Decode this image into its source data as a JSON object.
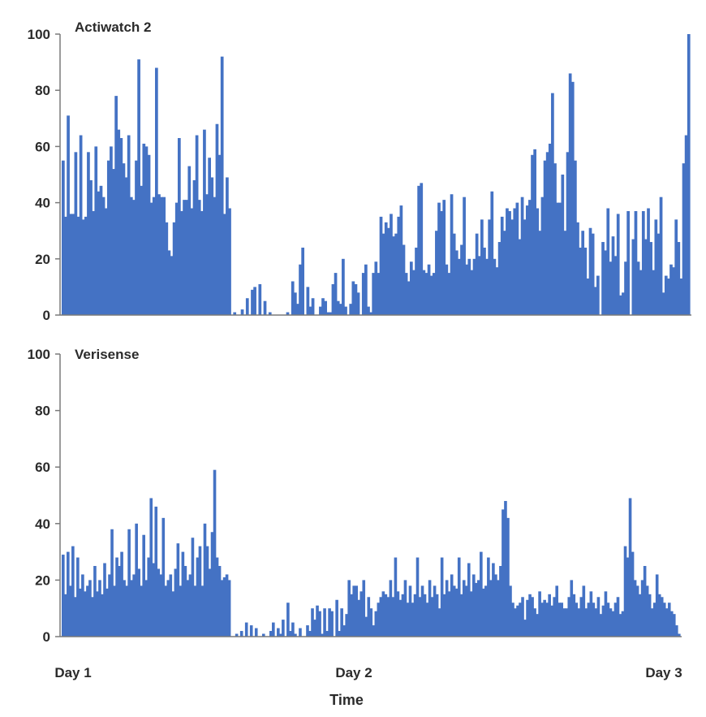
{
  "chart_data": [
    {
      "type": "bar",
      "title": "Actiwatch 2",
      "xlabel": "Time",
      "ylabel": "",
      "ylim": [
        0,
        100
      ],
      "yticks": [
        0,
        20,
        40,
        60,
        80,
        100
      ],
      "x_tick_labels": [
        "Day 1",
        "Day 2",
        "Day 3"
      ],
      "color": "#4472C4",
      "values": [
        55,
        35,
        71,
        36,
        36,
        58,
        35,
        64,
        34,
        35,
        58,
        48,
        37,
        60,
        44,
        46,
        42,
        38,
        55,
        60,
        52,
        78,
        66,
        63,
        54,
        49,
        64,
        42,
        41,
        55,
        91,
        46,
        61,
        60,
        57,
        40,
        42,
        88,
        43,
        42,
        42,
        33,
        23,
        21,
        33,
        40,
        63,
        37,
        41,
        41,
        53,
        38,
        48,
        64,
        41,
        37,
        66,
        43,
        56,
        49,
        42,
        68,
        57,
        92,
        36,
        49,
        38,
        0,
        1,
        0,
        0,
        2,
        0,
        6,
        0,
        9,
        10,
        0,
        11,
        0,
        5,
        0,
        1,
        0,
        0,
        0,
        0,
        0,
        0,
        1,
        0,
        12,
        8,
        4,
        18,
        24,
        0,
        10,
        3,
        6,
        0,
        0,
        3,
        6,
        5,
        1,
        1,
        11,
        15,
        5,
        4,
        20,
        3,
        0,
        4,
        12,
        11,
        8,
        0,
        15,
        18,
        3,
        1,
        15,
        19,
        15,
        35,
        29,
        33,
        31,
        36,
        28,
        29,
        35,
        39,
        25,
        15,
        12,
        19,
        16,
        24,
        46,
        47,
        16,
        15,
        18,
        14,
        15,
        30,
        40,
        37,
        41,
        18,
        15,
        43,
        29,
        23,
        20,
        25,
        42,
        18,
        20,
        16,
        20,
        29,
        21,
        34,
        24,
        20,
        34,
        44,
        20,
        17,
        26,
        35,
        30,
        38,
        37,
        34,
        38,
        40,
        27,
        42,
        34,
        39,
        41,
        57,
        59,
        38,
        30,
        42,
        55,
        58,
        61,
        79,
        54,
        40,
        40,
        50,
        30,
        58,
        86,
        83,
        55,
        33,
        24,
        30,
        24,
        13,
        31,
        29,
        10,
        14,
        0,
        26,
        23,
        38,
        19,
        28,
        21,
        36,
        7,
        8,
        19,
        37,
        0,
        27,
        37,
        19,
        16,
        37,
        27,
        38,
        26,
        16,
        34,
        29,
        42,
        8,
        14,
        13,
        18,
        17,
        34,
        26,
        13,
        54,
        64,
        100
      ],
      "series": []
    },
    {
      "type": "bar",
      "title": "Verisense",
      "xlabel": "Time",
      "ylabel": "",
      "ylim": [
        0,
        100
      ],
      "yticks": [
        0,
        20,
        40,
        60,
        80,
        100
      ],
      "x_tick_labels": [
        "Day 1",
        "Day 2",
        "Day 3"
      ],
      "color": "#4472C4",
      "values": [
        29,
        15,
        30,
        18,
        32,
        14,
        28,
        17,
        22,
        16,
        18,
        20,
        14,
        25,
        16,
        20,
        15,
        26,
        17,
        22,
        38,
        18,
        28,
        25,
        30,
        20,
        18,
        38,
        20,
        22,
        40,
        24,
        18,
        36,
        20,
        28,
        49,
        26,
        46,
        24,
        22,
        42,
        18,
        20,
        22,
        16,
        24,
        33,
        18,
        30,
        25,
        20,
        22,
        35,
        18,
        28,
        32,
        18,
        40,
        32,
        24,
        37,
        59,
        28,
        25,
        20,
        21,
        22,
        20,
        0,
        0,
        1,
        0,
        2,
        0,
        5,
        0,
        4,
        0,
        3,
        0,
        0,
        1,
        0,
        0,
        2,
        5,
        0,
        3,
        1,
        6,
        0,
        12,
        2,
        5,
        1,
        0,
        3,
        0,
        0,
        4,
        2,
        10,
        6,
        11,
        9,
        1,
        10,
        2,
        10,
        9,
        0,
        13,
        2,
        10,
        4,
        8,
        20,
        15,
        18,
        18,
        13,
        16,
        20,
        7,
        14,
        10,
        4,
        9,
        12,
        14,
        16,
        15,
        14,
        20,
        14,
        28,
        16,
        13,
        15,
        20,
        12,
        18,
        12,
        15,
        28,
        14,
        18,
        15,
        12,
        20,
        14,
        18,
        15,
        10,
        28,
        15,
        20,
        16,
        22,
        18,
        17,
        28,
        15,
        20,
        18,
        26,
        16,
        22,
        19,
        20,
        30,
        17,
        18,
        28,
        20,
        26,
        22,
        20,
        25,
        45,
        48,
        42,
        18,
        12,
        10,
        11,
        12,
        14,
        6,
        13,
        15,
        14,
        10,
        8,
        16,
        12,
        13,
        12,
        15,
        11,
        14,
        18,
        12,
        12,
        10,
        10,
        14,
        20,
        15,
        12,
        10,
        14,
        18,
        10,
        12,
        16,
        12,
        10,
        14,
        8,
        11,
        16,
        12,
        10,
        9,
        12,
        14,
        8,
        9,
        32,
        28,
        49,
        30,
        20,
        18,
        15,
        20,
        25,
        18,
        15,
        10,
        12,
        22,
        15,
        14,
        12,
        10,
        12,
        9,
        8,
        4,
        1
      ]
    }
  ]
}
